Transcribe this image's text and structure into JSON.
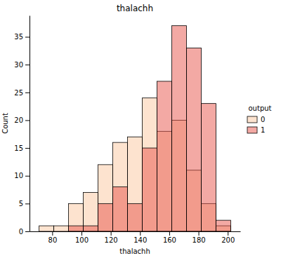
{
  "chart_data": {
    "type": "histogram",
    "title": "thalachh",
    "x_label": "thalachh",
    "y_label": "Count",
    "bins": [
      71,
      81.08,
      91.15,
      101.23,
      111.31,
      121.38,
      131.46,
      141.54,
      151.62,
      161.69,
      171.77,
      181.85,
      191.92,
      202
    ],
    "series": [
      {
        "name": "0",
        "color": "#fbc8a0",
        "values": [
          1,
          1,
          5,
          7,
          12,
          16,
          17,
          24,
          18,
          20,
          11,
          5,
          1
        ]
      },
      {
        "name": "1",
        "color": "#e8534a",
        "values": [
          0,
          0,
          1,
          1,
          5,
          8,
          5,
          15,
          27,
          37,
          33,
          23,
          2
        ]
      }
    ],
    "xlim": [
      64.45,
      208.55
    ],
    "xticks": [
      80,
      100,
      120,
      140,
      160,
      180,
      200
    ],
    "ylim": [
      0,
      38.85
    ],
    "yticks": [
      0,
      5,
      10,
      15,
      20,
      25,
      30,
      35
    ],
    "legend": "right",
    "legend_title": "output"
  }
}
